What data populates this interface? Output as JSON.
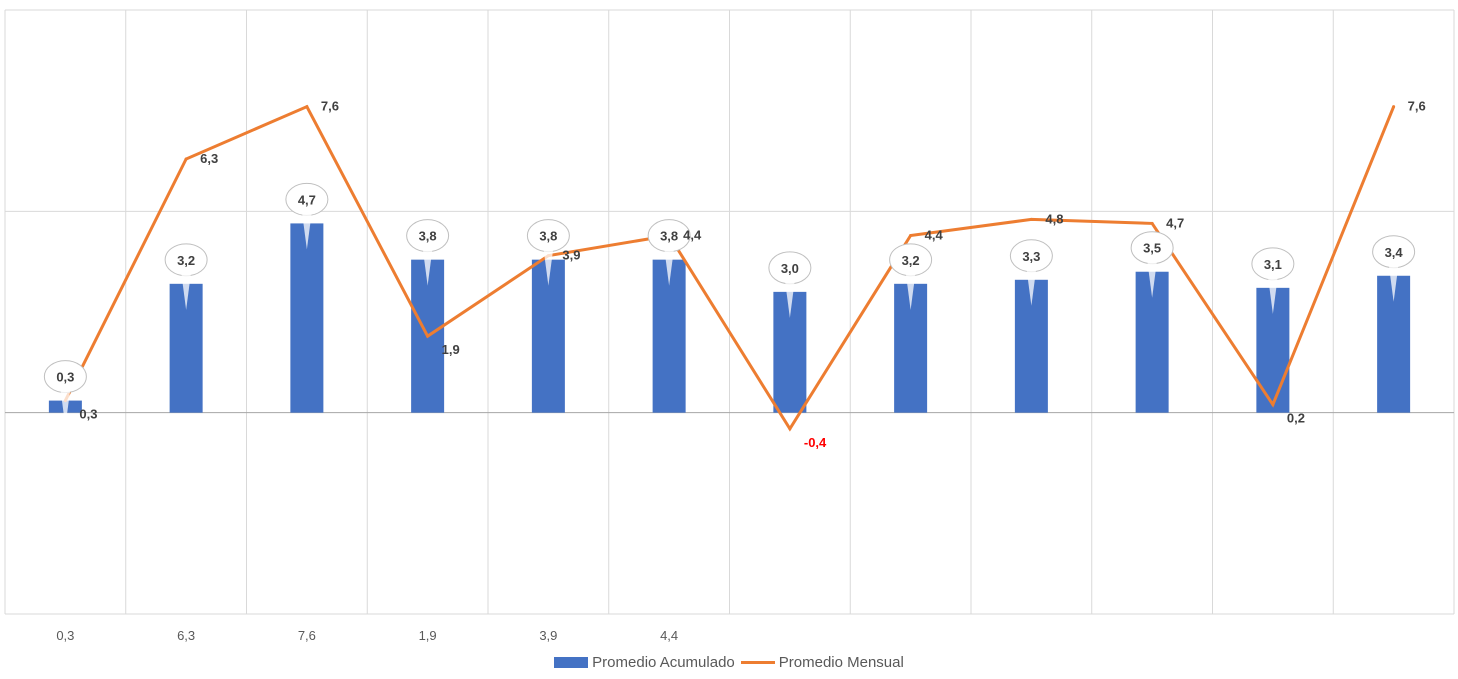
{
  "chart_data": {
    "type": "bar",
    "categories": [
      "0,3",
      "6,3",
      "7,6",
      "1,9",
      "3,9",
      "4,4",
      "",
      "",
      "",
      "",
      "",
      ""
    ],
    "series": [
      {
        "name": "Promedio Acumulado",
        "type": "bar",
        "color": "#4472c4",
        "values": [
          0.3,
          3.2,
          4.7,
          3.8,
          3.8,
          3.8,
          3.0,
          3.2,
          3.3,
          3.5,
          3.1,
          3.4
        ],
        "labels": [
          "0,3",
          "3,2",
          "4,7",
          "3,8",
          "3,8",
          "3,8",
          "3,0",
          "3,2",
          "3,3",
          "3,5",
          "3,1",
          "3,4"
        ]
      },
      {
        "name": "Promedio Mensual",
        "type": "line",
        "color": "#ed7d31",
        "values": [
          0.3,
          6.3,
          7.6,
          1.9,
          3.9,
          4.4,
          -0.4,
          4.4,
          4.8,
          4.7,
          0.2,
          7.6
        ],
        "labels": [
          "0,3",
          "6,3",
          "7,6",
          "1,9",
          "3,9",
          "4,4",
          "-0,4",
          "4,4",
          "4,8",
          "4,7",
          "0,2",
          "7,6"
        ]
      }
    ],
    "ylim": [
      -5,
      10
    ],
    "grid": true,
    "legend": "bottom",
    "negative_label_color": "#ff0000"
  }
}
